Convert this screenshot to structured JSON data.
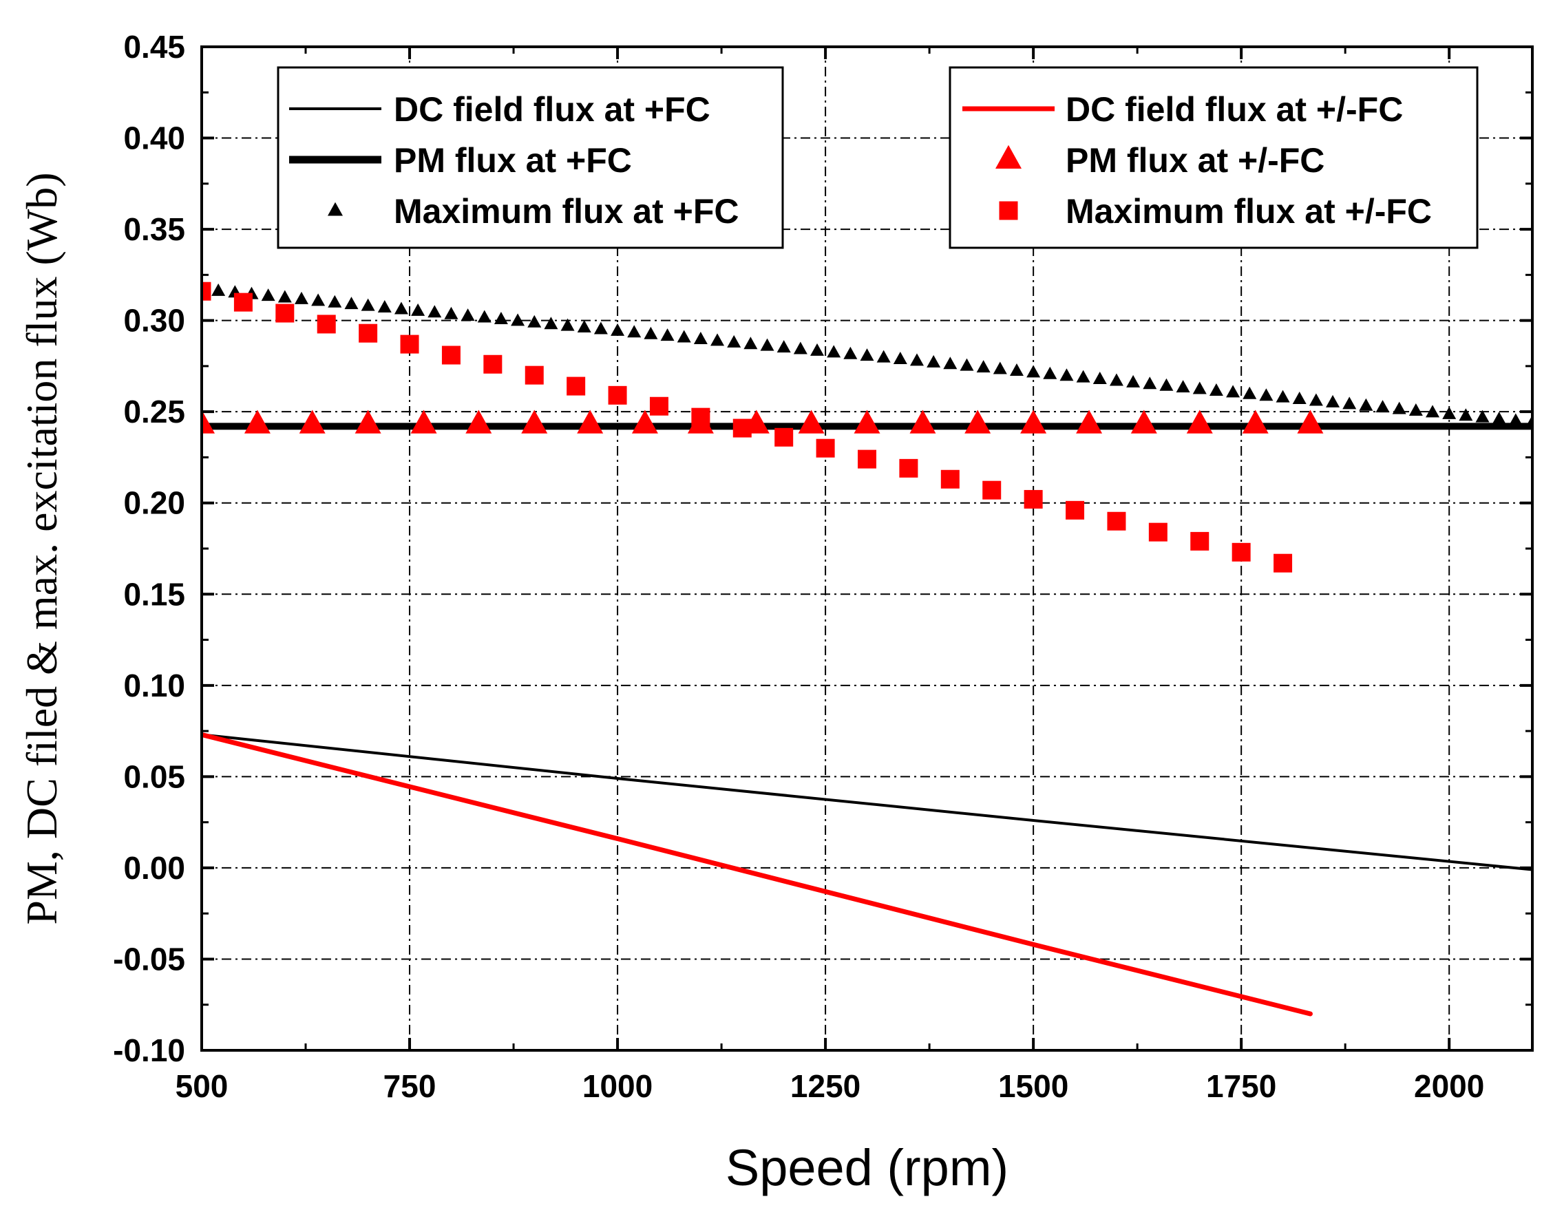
{
  "chart_data": {
    "type": "line",
    "xlabel": "Speed (rpm)",
    "ylabel": "PM, DC filed & max. excitation flux (Wb)",
    "xlim": [
      500,
      2100
    ],
    "ylim": [
      -0.1,
      0.45
    ],
    "grid": true,
    "x_ticks": [
      500,
      750,
      1000,
      1250,
      1500,
      1750,
      2000
    ],
    "x_tick_labels": [
      "500",
      "750",
      "1000",
      "1250",
      "1500",
      "1750",
      "2000"
    ],
    "y_ticks": [
      -0.1,
      -0.05,
      0.0,
      0.05,
      0.1,
      0.15,
      0.2,
      0.25,
      0.3,
      0.35,
      0.4,
      0.45
    ],
    "y_tick_labels": [
      "-0.10",
      "-0.05",
      "0.00",
      "0.05",
      "0.10",
      "0.15",
      "0.20",
      "0.25",
      "0.30",
      "0.35",
      "0.40",
      "0.45"
    ],
    "legends": [
      {
        "position": "top-left",
        "entries": [
          {
            "name": "DC field flux at +FC",
            "marker": "thin-line",
            "color": "#000000"
          },
          {
            "name": "PM flux at +FC",
            "marker": "thick-line",
            "color": "#000000"
          },
          {
            "name": "Maximum flux at +FC",
            "marker": "small-triangle",
            "color": "#000000"
          }
        ]
      },
      {
        "position": "top-right",
        "entries": [
          {
            "name": "DC field flux at +/-FC",
            "marker": "thick-line",
            "color": "#ff0000"
          },
          {
            "name": "PM flux at +/-FC",
            "marker": "triangle",
            "color": "#ff0000"
          },
          {
            "name": "Maximum flux at +/-FC",
            "marker": "square",
            "color": "#ff0000"
          }
        ]
      }
    ],
    "series": [
      {
        "name": "DC field flux at +FC",
        "style": "line",
        "color": "#000000",
        "x": [
          500,
          1000,
          1500,
          2100
        ],
        "y": [
          0.073,
          0.049,
          0.026,
          -0.001
        ]
      },
      {
        "name": "PM flux at +FC",
        "style": "line",
        "color": "#000000",
        "x": [
          500,
          2100
        ],
        "y": [
          0.242,
          0.242
        ]
      },
      {
        "name": "Maximum flux at +FC",
        "style": "markers",
        "marker": "small-triangle",
        "color": "#000000",
        "x_start": 500,
        "x_end": 2100,
        "x_step": 20,
        "y_start": 0.317,
        "y_end": 0.244
      },
      {
        "name": "DC field flux at +/-FC",
        "style": "line",
        "color": "#ff0000",
        "x": [
          500,
          1000,
          1500,
          1833
        ],
        "y": [
          0.073,
          0.016,
          -0.042,
          -0.08
        ]
      },
      {
        "name": "PM flux at +/-FC",
        "style": "markers",
        "marker": "triangle",
        "color": "#ff0000",
        "x": [
          500,
          567,
          633,
          700,
          767,
          833,
          900,
          967,
          1033,
          1100,
          1167,
          1233,
          1300,
          1367,
          1433,
          1500,
          1567,
          1633,
          1700,
          1767,
          1833
        ],
        "y": [
          0.243,
          0.243,
          0.243,
          0.243,
          0.243,
          0.243,
          0.243,
          0.243,
          0.243,
          0.243,
          0.243,
          0.243,
          0.243,
          0.243,
          0.243,
          0.243,
          0.243,
          0.243,
          0.243,
          0.243,
          0.243
        ]
      },
      {
        "name": "Maximum flux at +/-FC",
        "style": "markers",
        "marker": "square",
        "color": "#ff0000",
        "x": [
          500,
          550,
          600,
          650,
          700,
          750,
          800,
          850,
          900,
          950,
          1000,
          1050,
          1100,
          1150,
          1200,
          1250,
          1300,
          1350,
          1400,
          1450,
          1500,
          1550,
          1600,
          1650,
          1700,
          1750,
          1800
        ],
        "y": [
          0.316,
          0.31,
          0.304,
          0.298,
          0.293,
          0.287,
          0.281,
          0.276,
          0.27,
          0.264,
          0.259,
          0.253,
          0.247,
          0.241,
          0.236,
          0.23,
          0.224,
          0.219,
          0.213,
          0.207,
          0.202,
          0.196,
          0.19,
          0.184,
          0.179,
          0.173,
          0.167
        ]
      }
    ]
  }
}
